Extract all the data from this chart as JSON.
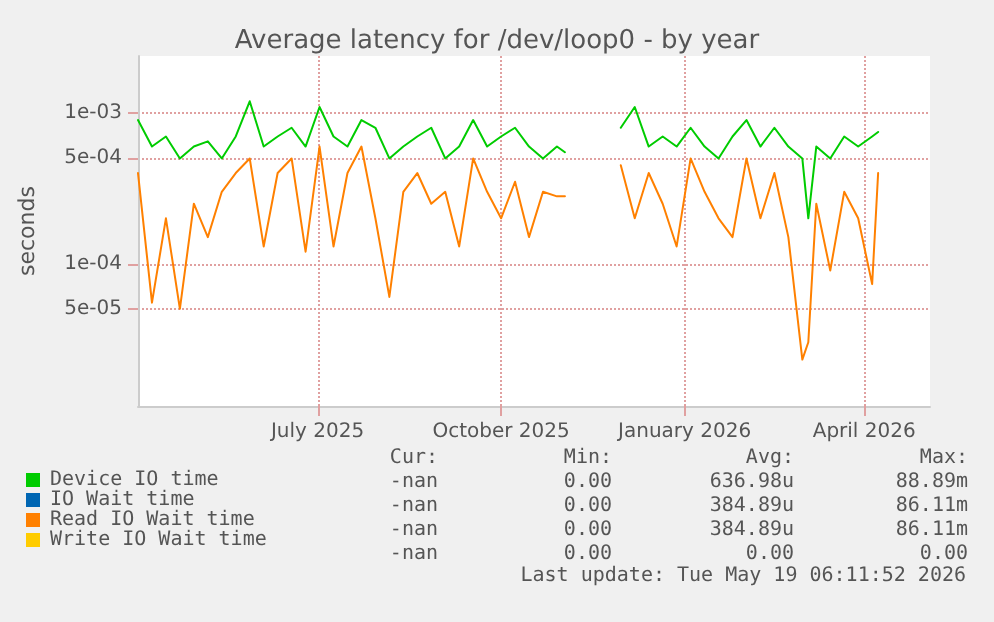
{
  "chart_data": {
    "type": "line",
    "title": "Average latency for /dev/loop0 - by year",
    "ylabel": "seconds",
    "x": [
      "2025-04-02",
      "2025-04-09",
      "2025-04-16",
      "2025-04-23",
      "2025-04-30",
      "2025-05-07",
      "2025-05-14",
      "2025-05-21",
      "2025-05-28",
      "2025-06-04",
      "2025-06-11",
      "2025-06-18",
      "2025-06-25",
      "2025-07-02",
      "2025-07-09",
      "2025-07-16",
      "2025-07-23",
      "2025-07-30",
      "2025-08-06",
      "2025-08-13",
      "2025-08-20",
      "2025-08-27",
      "2025-09-03",
      "2025-09-10",
      "2025-09-17",
      "2025-09-24",
      "2025-10-01",
      "2025-10-08",
      "2025-10-15",
      "2025-10-22",
      "2025-10-29",
      "2025-11-02",
      "2025-11-15",
      "2025-11-30",
      "2025-12-07",
      "2025-12-14",
      "2025-12-21",
      "2025-12-28",
      "2026-01-04",
      "2026-01-11",
      "2026-01-18",
      "2026-01-25",
      "2026-02-01",
      "2026-02-08",
      "2026-02-15",
      "2026-02-22",
      "2026-03-01",
      "2026-03-04",
      "2026-03-08",
      "2026-03-15",
      "2026-03-22",
      "2026-03-29",
      "2026-04-05",
      "2026-04-08"
    ],
    "series": [
      {
        "name": "Device IO time",
        "color": "#00cc00",
        "values": [
          0.0009,
          0.0006,
          0.0007,
          0.0005,
          0.0006,
          0.00065,
          0.0005,
          0.0007,
          0.0012,
          0.0006,
          0.0007,
          0.0008,
          0.0006,
          0.0011,
          0.0007,
          0.0006,
          0.0009,
          0.0008,
          0.0005,
          0.0006,
          0.0007,
          0.0008,
          0.0005,
          0.0006,
          0.0009,
          0.0006,
          0.0007,
          0.0008,
          0.0006,
          0.0005,
          0.0006,
          0.00055,
          null,
          0.0008,
          0.0011,
          0.0006,
          0.0007,
          0.0006,
          0.0008,
          0.0006,
          0.0005,
          0.0007,
          0.0009,
          0.0006,
          0.0008,
          0.0006,
          0.0005,
          0.0002,
          0.0006,
          0.0005,
          0.0007,
          0.0006,
          0.0007,
          0.00075
        ]
      },
      {
        "name": "IO Wait time",
        "color": "#0066b3",
        "values": [
          null,
          null,
          null,
          null,
          null,
          null,
          null,
          null,
          null,
          null,
          null,
          null,
          null,
          null,
          null,
          null,
          null,
          null,
          null,
          null,
          null,
          null,
          null,
          null,
          null,
          null,
          null,
          null,
          null,
          null,
          null,
          null,
          null,
          null,
          null,
          null,
          null,
          null,
          null,
          null,
          null,
          null,
          null,
          null,
          null,
          null,
          null,
          null,
          null,
          null,
          null,
          null,
          null,
          null
        ]
      },
      {
        "name": "Read IO Wait time",
        "color": "#ff8000",
        "values": [
          0.0004,
          5.5e-05,
          0.0002,
          5e-05,
          0.00025,
          0.00015,
          0.0003,
          0.0004,
          0.0005,
          0.00013,
          0.0004,
          0.0005,
          0.00012,
          0.0006,
          0.00013,
          0.0004,
          0.0006,
          0.0002,
          6e-05,
          0.0003,
          0.0004,
          0.00025,
          0.0003,
          0.00013,
          0.0005,
          0.0003,
          0.0002,
          0.00035,
          0.00015,
          0.0003,
          0.00028,
          0.00028,
          null,
          0.00045,
          0.0002,
          0.0004,
          0.00025,
          0.00013,
          0.0005,
          0.0003,
          0.0002,
          0.00015,
          0.0005,
          0.0002,
          0.0004,
          0.00015,
          2.3e-05,
          3e-05,
          0.00025,
          9e-05,
          0.0003,
          0.0002,
          7.3e-05,
          0.0004
        ]
      },
      {
        "name": "Write IO Wait time",
        "color": "#ffcc00",
        "values": [
          null,
          null,
          null,
          null,
          null,
          null,
          null,
          null,
          null,
          null,
          null,
          null,
          null,
          null,
          null,
          null,
          null,
          null,
          null,
          null,
          null,
          null,
          null,
          null,
          null,
          null,
          null,
          null,
          null,
          null,
          null,
          null,
          null,
          null,
          null,
          null,
          null,
          null,
          null,
          null,
          null,
          null,
          null,
          null,
          null,
          null,
          null,
          null,
          null,
          null,
          null,
          null,
          null,
          null
        ]
      }
    ],
    "xlim": [
      "2025-04-02",
      "2026-05-04"
    ],
    "xticks": [
      {
        "value": "2025-07-01",
        "label": "July 2025"
      },
      {
        "value": "2025-10-01",
        "label": "October 2025"
      },
      {
        "value": "2026-01-01",
        "label": "January 2026"
      },
      {
        "value": "2026-04-01",
        "label": "April 2026"
      }
    ],
    "ylim": [
      1.13e-05,
      0.0024
    ],
    "yticks": [
      {
        "value": 5e-05,
        "label": "5e-05"
      },
      {
        "value": 0.0001,
        "label": "1e-04"
      },
      {
        "value": 0.0005,
        "label": "5e-04"
      },
      {
        "value": 0.001,
        "label": "1e-03"
      }
    ],
    "log": true,
    "grid": true,
    "legend": "bottom left",
    "marker": "none",
    "line_style": "solid",
    "annotations": [
      "Cur:",
      "Min:",
      "Avg:",
      "Max:",
      "-nan",
      "0.00",
      "636.98u",
      "88.89m",
      "-nan",
      "0.00",
      "384.89u",
      "86.11m",
      "-nan",
      "0.00",
      "384.89u",
      "86.11m",
      "-nan",
      "0.00",
      "0.00",
      "0.00",
      "Last update: Tue May 19 06:11:52 2026"
    ]
  }
}
